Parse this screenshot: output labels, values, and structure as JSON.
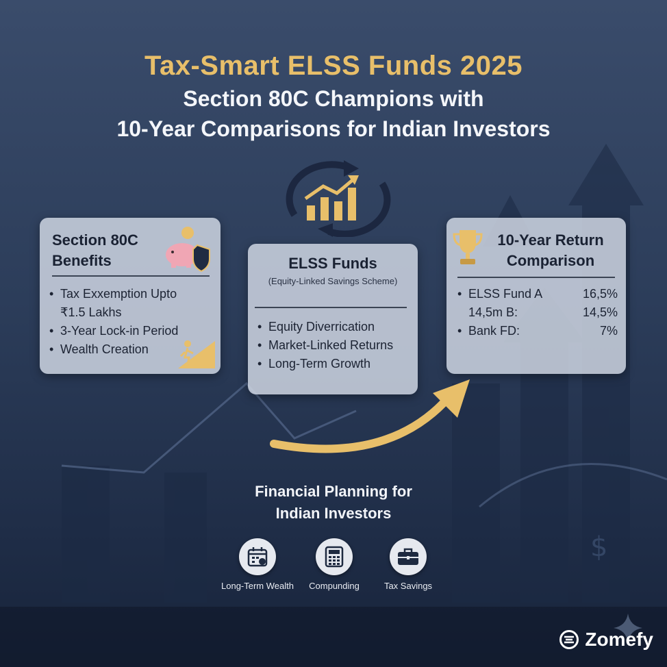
{
  "header": {
    "title": "Tax-Smart ELSS Funds 2025",
    "subtitle_line1": "Section 80C Champions with",
    "subtitle_line2": "10-Year Comparisons for Indian Investors"
  },
  "cards": {
    "benefits": {
      "title": "Section 80C Benefits",
      "items": [
        "Tax Exxemption Upto",
        "₹1.5 Lakhs",
        "3-Year Lock-in Period",
        "Wealth Creation"
      ]
    },
    "elss": {
      "title": "ELSS Funds",
      "subtitle": "(Equity-Linked Savings Scheme)",
      "items": [
        "Equity Diverrication",
        "Market-Linked Returns",
        "Long-Term Growth"
      ]
    },
    "comparison": {
      "title": "10-Year Return Comparison",
      "rows": [
        {
          "label": "ELSS Fund A",
          "value": "16,5%"
        },
        {
          "label": "14,5m B:",
          "value": "14,5%"
        },
        {
          "label": "Bank FD:",
          "value": "7%"
        }
      ]
    }
  },
  "planning": {
    "title_line1": "Financial Planning for",
    "title_line2": "Indian Investors",
    "features": [
      {
        "icon": "calendar-icon",
        "label": "Long-Term Wealth"
      },
      {
        "icon": "calculator-icon",
        "label": "Compunding"
      },
      {
        "icon": "briefcase-icon",
        "label": "Tax Savings"
      }
    ]
  },
  "brand": {
    "name": "Zomefy"
  },
  "colors": {
    "gold": "#e8bf6a",
    "card": "#cdd4e1",
    "background": "#2c3d5a"
  }
}
